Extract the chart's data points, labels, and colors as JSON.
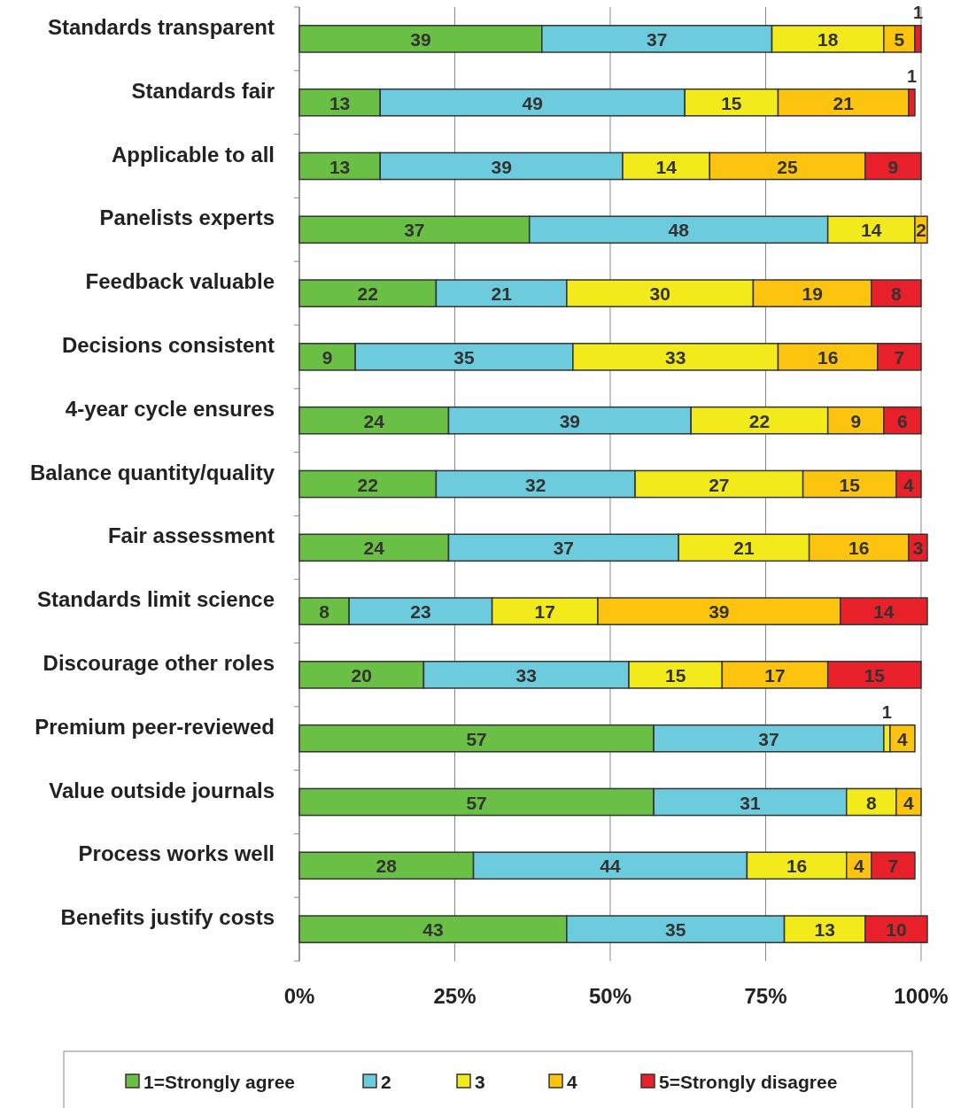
{
  "chart_data": {
    "type": "bar",
    "orientation": "horizontal",
    "stacked": true,
    "categories": [
      "Standards transparent",
      "Standards fair",
      "Applicable to all",
      "Panelists experts",
      "Feedback valuable",
      "Decisions consistent",
      "4-year cycle ensures",
      "Balance quantity/quality",
      "Fair assessment",
      "Standards limit science",
      "Discourage other roles",
      "Premium peer-reviewed",
      "Value outside journals",
      "Process works well",
      "Benefits justify costs"
    ],
    "series": [
      {
        "name": "1=Strongly agree",
        "color": "#6abf45",
        "values": [
          39,
          13,
          13,
          37,
          22,
          9,
          24,
          22,
          24,
          8,
          20,
          57,
          57,
          28,
          43
        ]
      },
      {
        "name": "2",
        "color": "#6ccbdc",
        "values": [
          37,
          49,
          39,
          48,
          21,
          35,
          39,
          32,
          37,
          23,
          33,
          37,
          31,
          44,
          35
        ]
      },
      {
        "name": "3",
        "color": "#f2ea1a",
        "values": [
          18,
          15,
          14,
          14,
          30,
          33,
          22,
          27,
          21,
          17,
          15,
          1,
          8,
          16,
          13
        ]
      },
      {
        "name": "4",
        "color": "#fcc40f",
        "values": [
          5,
          21,
          25,
          2,
          19,
          16,
          9,
          15,
          16,
          39,
          17,
          4,
          4,
          4,
          null
        ]
      },
      {
        "name": "5=Strongly disagree",
        "color": "#e8202a",
        "values": [
          1,
          1,
          9,
          null,
          8,
          7,
          6,
          4,
          3,
          14,
          15,
          null,
          null,
          7,
          10
        ]
      }
    ],
    "xlim": [
      0,
      101
    ],
    "xticks": [
      {
        "value": 0,
        "label": "0%"
      },
      {
        "value": 25,
        "label": "25%"
      },
      {
        "value": 50,
        "label": "50%"
      },
      {
        "value": 75,
        "label": "75%"
      },
      {
        "value": 100,
        "label": "100%"
      }
    ],
    "grid": "x",
    "legend": "bottom",
    "data_labels": true
  }
}
